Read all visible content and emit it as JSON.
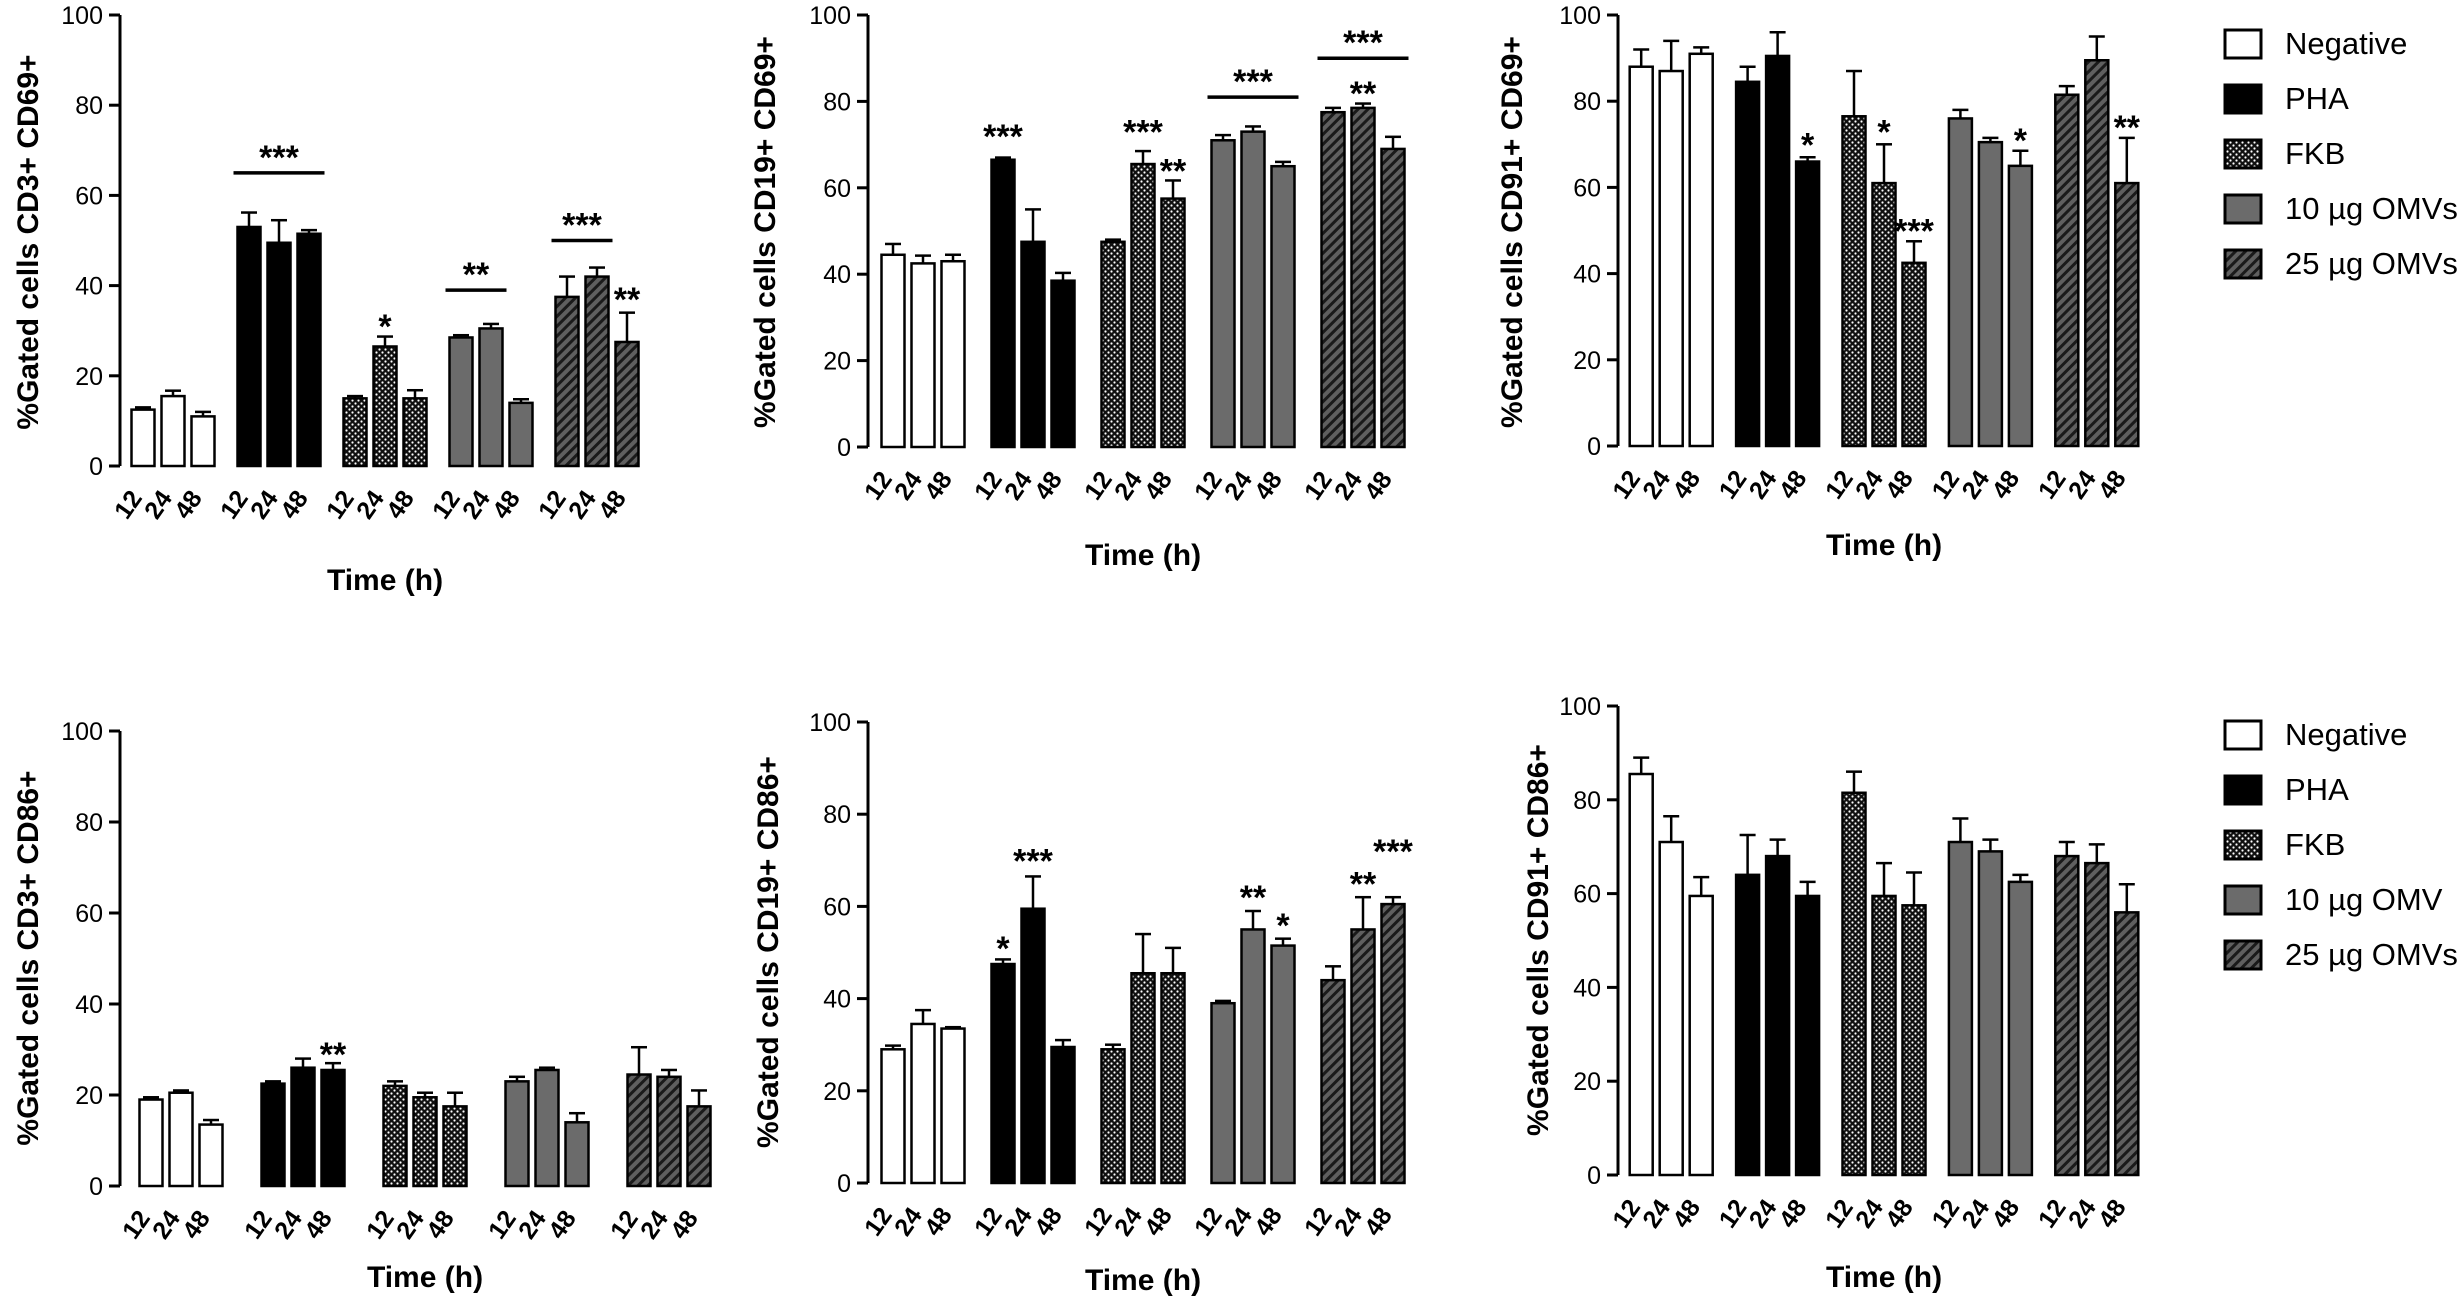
{
  "chart_data": [
    {
      "type": "bar",
      "ylabel": "%Gated cells CD3+ CD69+",
      "xlabel": "Time (h)",
      "ylim": [
        0,
        100
      ],
      "yticks": [
        0,
        20,
        40,
        60,
        80,
        100
      ],
      "categories": [
        "12",
        "24",
        "48"
      ],
      "groups": [
        {
          "name": "Negative",
          "values": [
            12.5,
            15.5,
            11
          ],
          "errors": [
            0.5,
            1.2,
            1
          ]
        },
        {
          "name": "PHA",
          "values": [
            53,
            49.5,
            51.5
          ],
          "errors": [
            3.2,
            5,
            0.8
          ]
        },
        {
          "name": "FKB",
          "values": [
            15,
            26.5,
            15
          ],
          "errors": [
            0.5,
            2.2,
            1.8
          ]
        },
        {
          "name": "10 µg OMVs",
          "values": [
            28.5,
            30.5,
            14
          ],
          "errors": [
            0.5,
            1,
            0.8
          ]
        },
        {
          "name": "25 µg OMVs",
          "values": [
            37.5,
            42,
            27.5
          ],
          "errors": [
            4.5,
            2,
            6.5
          ]
        }
      ],
      "annotations": [
        {
          "text": "***",
          "type": "bracket",
          "from_group": 1,
          "from_bar": 0,
          "to_group": 1,
          "to_bar": 2,
          "at": 65
        },
        {
          "text": "*",
          "type": "star",
          "group": 2,
          "bar": 1,
          "at": 31
        },
        {
          "text": "**",
          "type": "bracket",
          "from_group": 3,
          "from_bar": 0,
          "to_group": 3,
          "to_bar": 1,
          "at": 39
        },
        {
          "text": "***",
          "type": "bracket",
          "from_group": 4,
          "from_bar": 0,
          "to_group": 4,
          "to_bar": 1,
          "at": 50
        },
        {
          "text": "**",
          "type": "star",
          "group": 4,
          "bar": 2,
          "at": 37
        }
      ]
    },
    {
      "type": "bar",
      "ylabel": "%Gated cells CD19+ CD69+",
      "xlabel": "Time (h)",
      "ylim": [
        0,
        100
      ],
      "yticks": [
        0,
        20,
        40,
        60,
        80,
        100
      ],
      "categories": [
        "12",
        "24",
        "48"
      ],
      "groups": [
        {
          "name": "Negative",
          "values": [
            44.5,
            42.5,
            43
          ],
          "errors": [
            2.5,
            1.8,
            1.5
          ]
        },
        {
          "name": "PHA",
          "values": [
            66.5,
            47.5,
            38.5
          ],
          "errors": [
            0.5,
            7.5,
            1.8
          ]
        },
        {
          "name": "FKB",
          "values": [
            47.5,
            65.5,
            57.5
          ],
          "errors": [
            0.5,
            3,
            4.2
          ]
        },
        {
          "name": "10 µg OMVs",
          "values": [
            71,
            73,
            65
          ],
          "errors": [
            1.2,
            1.2,
            1
          ]
        },
        {
          "name": "25 µg OMVs",
          "values": [
            77.5,
            78.5,
            69
          ],
          "errors": [
            1,
            1,
            2.8
          ]
        }
      ],
      "annotations": [
        {
          "text": "***",
          "type": "star",
          "group": 1,
          "bar": 0,
          "at": 72
        },
        {
          "text": "***",
          "type": "star",
          "group": 2,
          "bar": 1,
          "at": 73
        },
        {
          "text": "**",
          "type": "star",
          "group": 2,
          "bar": 2,
          "at": 64
        },
        {
          "text": "***",
          "type": "bracket",
          "from_group": 3,
          "from_bar": 0,
          "to_group": 3,
          "to_bar": 2,
          "at": 81
        },
        {
          "text": "***",
          "type": "bracket",
          "from_group": 4,
          "from_bar": 0,
          "to_group": 4,
          "to_bar": 2,
          "at": 90
        },
        {
          "text": "**",
          "type": "star",
          "group": 4,
          "bar": 1,
          "at": 82
        }
      ]
    },
    {
      "type": "bar",
      "ylabel": "%Gated cells CD91+ CD69+",
      "xlabel": "Time (h)",
      "ylim": [
        0,
        100
      ],
      "yticks": [
        0,
        20,
        40,
        60,
        80,
        100
      ],
      "categories": [
        "12",
        "24",
        "48"
      ],
      "groups": [
        {
          "name": "Negative",
          "values": [
            88,
            87,
            91
          ],
          "errors": [
            4,
            7,
            1.5
          ]
        },
        {
          "name": "PHA",
          "values": [
            84.5,
            90.5,
            66
          ],
          "errors": [
            3.5,
            5.5,
            1
          ]
        },
        {
          "name": "FKB",
          "values": [
            76.5,
            61,
            42.5
          ],
          "errors": [
            10.5,
            9,
            5
          ]
        },
        {
          "name": "10 µg OMVs",
          "values": [
            76,
            70.5,
            65
          ],
          "errors": [
            2,
            1,
            3.5
          ]
        },
        {
          "name": "25 µg OMVs",
          "values": [
            81.5,
            89.5,
            61
          ],
          "errors": [
            2,
            5.5,
            10.5
          ]
        }
      ],
      "annotations": [
        {
          "text": "*",
          "type": "star",
          "group": 1,
          "bar": 2,
          "at": 70
        },
        {
          "text": "*",
          "type": "star",
          "group": 2,
          "bar": 1,
          "at": 73
        },
        {
          "text": "***",
          "type": "star",
          "group": 2,
          "bar": 2,
          "at": 50
        },
        {
          "text": "*",
          "type": "star",
          "group": 3,
          "bar": 2,
          "at": 71
        },
        {
          "text": "**",
          "type": "star",
          "group": 4,
          "bar": 2,
          "at": 74
        }
      ],
      "legend": {
        "placement": "right",
        "entries": [
          "Negative",
          "PHA",
          "FKB",
          "10 µg OMVs",
          "25 µg OMVs"
        ]
      }
    },
    {
      "type": "bar",
      "ylabel": "%Gated cells CD3+ CD86+",
      "xlabel": "Time (h)",
      "ylim": [
        0,
        100
      ],
      "yticks": [
        0,
        20,
        40,
        60,
        80,
        100
      ],
      "categories": [
        "12",
        "24",
        "48"
      ],
      "groups": [
        {
          "name": "Negative",
          "values": [
            19,
            20.5,
            13.5
          ],
          "errors": [
            0.5,
            0.5,
            1
          ]
        },
        {
          "name": "PHA",
          "values": [
            22.5,
            26,
            25.5
          ],
          "errors": [
            0.5,
            2,
            1.5
          ]
        },
        {
          "name": "FKB",
          "values": [
            22,
            19.5,
            17.5
          ],
          "errors": [
            1,
            1,
            3
          ]
        },
        {
          "name": "10 µg OMVs",
          "values": [
            23,
            25.5,
            14
          ],
          "errors": [
            1,
            0.5,
            2
          ]
        },
        {
          "name": "25 µg OMVs",
          "values": [
            24.5,
            24,
            17.5
          ],
          "errors": [
            6,
            1.5,
            3.5
          ]
        }
      ],
      "annotations": [
        {
          "text": "**",
          "type": "star",
          "group": 1,
          "bar": 2,
          "at": 29
        }
      ]
    },
    {
      "type": "bar",
      "ylabel": "%Gated cells CD19+ CD86+",
      "xlabel": "Time (h)",
      "ylim": [
        0,
        100
      ],
      "yticks": [
        0,
        20,
        40,
        60,
        80,
        100
      ],
      "categories": [
        "12",
        "24",
        "48"
      ],
      "groups": [
        {
          "name": "Negative",
          "values": [
            29,
            34.5,
            33.5
          ],
          "errors": [
            0.8,
            3,
            0.3
          ]
        },
        {
          "name": "PHA",
          "values": [
            47.5,
            59.5,
            29.5
          ],
          "errors": [
            1,
            7,
            1.5
          ]
        },
        {
          "name": "FKB",
          "values": [
            29,
            45.5,
            45.5
          ],
          "errors": [
            1,
            8.5,
            5.5
          ]
        },
        {
          "name": "10 µg OMVs",
          "values": [
            39,
            55,
            51.5
          ],
          "errors": [
            0.5,
            4,
            1.5
          ]
        },
        {
          "name": "25 µg OMVs",
          "values": [
            44,
            55,
            60.5
          ],
          "errors": [
            3,
            7,
            1.5
          ]
        }
      ],
      "annotations": [
        {
          "text": "*",
          "type": "star",
          "group": 1,
          "bar": 0,
          "at": 51
        },
        {
          "text": "***",
          "type": "star",
          "group": 1,
          "bar": 1,
          "at": 70
        },
        {
          "text": "**",
          "type": "star",
          "group": 3,
          "bar": 1,
          "at": 62
        },
        {
          "text": "*",
          "type": "star",
          "group": 3,
          "bar": 2,
          "at": 56
        },
        {
          "text": "**",
          "type": "star",
          "group": 4,
          "bar": 1,
          "at": 65
        },
        {
          "text": "***",
          "type": "star",
          "group": 4,
          "bar": 2,
          "at": 72
        }
      ]
    },
    {
      "type": "bar",
      "ylabel": "%Gated cells CD91+ CD86+",
      "xlabel": "Time (h)",
      "ylim": [
        0,
        100
      ],
      "yticks": [
        0,
        20,
        40,
        60,
        80,
        100
      ],
      "categories": [
        "12",
        "24",
        "48"
      ],
      "groups": [
        {
          "name": "Negative",
          "values": [
            85.5,
            71,
            59.5
          ],
          "errors": [
            3.5,
            5.5,
            4
          ]
        },
        {
          "name": "PHA",
          "values": [
            64,
            68,
            59.5
          ],
          "errors": [
            8.5,
            3.5,
            3
          ]
        },
        {
          "name": "FKB",
          "values": [
            81.5,
            59.5,
            57.5
          ],
          "errors": [
            4.5,
            7,
            7
          ]
        },
        {
          "name": "10 µg OMV",
          "values": [
            71,
            69,
            62.5
          ],
          "errors": [
            5,
            2.5,
            1.5
          ]
        },
        {
          "name": "25 µg OMVs",
          "values": [
            68,
            66.5,
            56
          ],
          "errors": [
            3,
            4,
            6
          ]
        }
      ],
      "annotations": [],
      "legend": {
        "placement": "right",
        "entries": [
          "Negative",
          "PHA",
          "FKB",
          "10 µg OMV",
          "25 µg OMVs"
        ]
      }
    }
  ]
}
